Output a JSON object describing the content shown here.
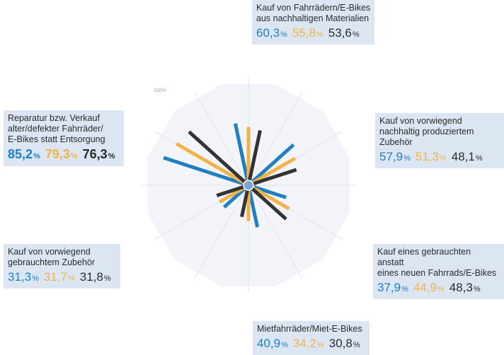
{
  "chart_data": {
    "type": "radar",
    "scale_label": "100%",
    "colors": [
      "#1f7fc1",
      "#f0b34a",
      "#333333"
    ],
    "categories": [
      {
        "label": "Kauf von Fahrrädern/E-Bikes\naus nachhaltigen Materialien",
        "values": [
          60.3,
          55.8,
          53.6
        ],
        "text": [
          "60,3",
          "55,8",
          "53,6"
        ]
      },
      {
        "label": "Kauf von vorwiegend\nnachhaltig produziertem Zubehör",
        "values": [
          57.9,
          51.3,
          48.1
        ],
        "text": [
          "57,9",
          "51,3",
          "48,1"
        ]
      },
      {
        "label": "Kauf eines gebrauchten anstatt\neines neuen Fahrrads/E-Bikes",
        "values": [
          37.9,
          44.9,
          48.3
        ],
        "text": [
          "37,9",
          "44,9",
          "48,3"
        ]
      },
      {
        "label": "Mietfahrräder/Miet-E-Bikes",
        "values": [
          40.9,
          34.2,
          30.8
        ],
        "text": [
          "40,9",
          "34,2",
          "30,8"
        ]
      },
      {
        "label": "Kauf von vorwiegend\ngebrauchtem Zubehör",
        "values": [
          31.3,
          31.7,
          31.8
        ],
        "text": [
          "31,3",
          "31,7",
          "31,8"
        ]
      },
      {
        "label": "Reparatur bzw. Verkauf\nalter/defekter Fahrräder/\nE-Bikes statt Entsorgung",
        "values": [
          85.2,
          79.3,
          76.3
        ],
        "text": [
          "85,2",
          "79,3",
          "76,3"
        ],
        "emphasis": true
      }
    ],
    "ylim": [
      0,
      100
    ]
  },
  "percent_sign": "%"
}
